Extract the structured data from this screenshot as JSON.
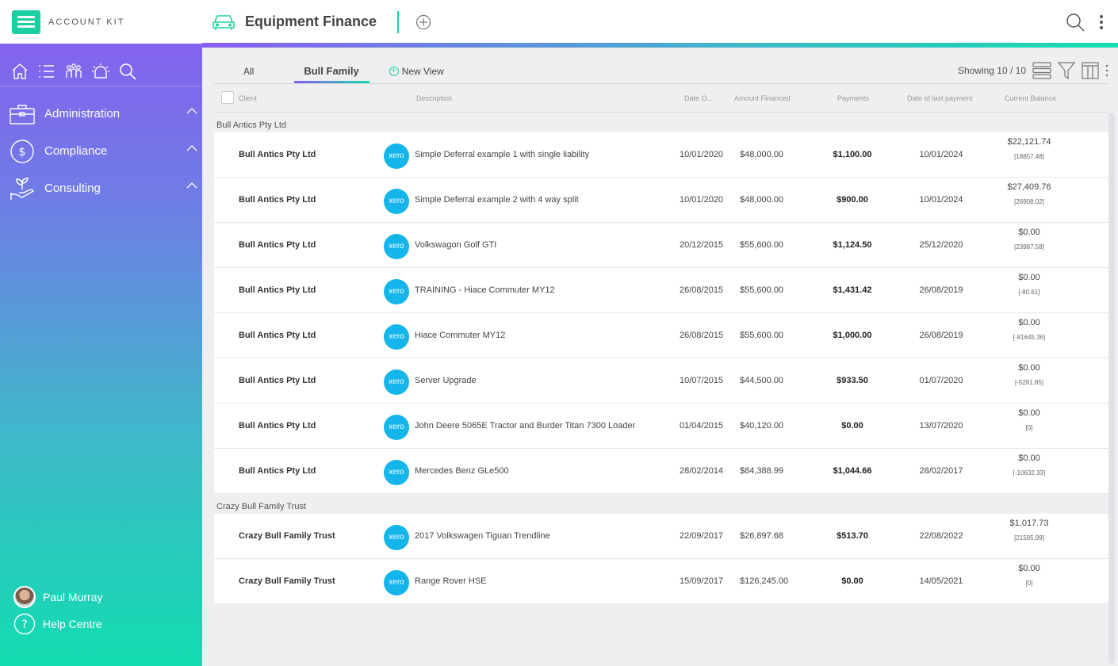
{
  "brand": {
    "name": "ACCOUNT KIT"
  },
  "header": {
    "title": "Equipment Finance"
  },
  "sidebar": {
    "icons": [
      "home-icon",
      "list-icon",
      "people-icon",
      "alarm-icon",
      "search-icon"
    ],
    "items": [
      {
        "label": "Administration",
        "icon": "briefcase-icon"
      },
      {
        "label": "Compliance",
        "icon": "dollar-circle-icon"
      },
      {
        "label": "Consulting",
        "icon": "hand-plant-icon"
      }
    ],
    "user": "Paul Murray",
    "help": "Help Centre"
  },
  "tabs": {
    "all": "All",
    "active": "Bull Family",
    "new_view": "New View"
  },
  "showing": "Showing 10 / 10",
  "columns": {
    "client": "Client",
    "description": "Description",
    "date": "Date O...",
    "amount": "Amount Financed",
    "payments": "Payments",
    "last_payment": "Date of last payment",
    "balance": "Current Balance"
  },
  "groups": [
    {
      "name": "Bull Antics Pty Ltd",
      "rows": [
        {
          "client": "Bull Antics Pty Ltd",
          "desc": "Simple Deferral example 1 with single liability",
          "date": "10/01/2020",
          "amount": "$48,000.00",
          "payment": "$1,100.00",
          "last": "10/01/2024",
          "balance": "$22,121.74",
          "sub": "[18857.48]"
        },
        {
          "client": "Bull Antics Pty Ltd",
          "desc": "Simple Deferral example 2 with 4 way split",
          "date": "10/01/2020",
          "amount": "$48,000.00",
          "payment": "$900.00",
          "last": "10/01/2024",
          "balance": "$27,409.76",
          "sub": "[26908.02]"
        },
        {
          "client": "Bull Antics Pty Ltd",
          "desc": "Volkswagon Golf GTI",
          "date": "20/12/2015",
          "amount": "$55,600.00",
          "payment": "$1,124.50",
          "last": "25/12/2020",
          "balance": "$0.00",
          "sub": "[23987.58]"
        },
        {
          "client": "Bull Antics Pty Ltd",
          "desc": "TRAINING - Hiace Commuter MY12",
          "date": "26/08/2015",
          "amount": "$55,600.00",
          "payment": "$1,431.42",
          "last": "26/08/2019",
          "balance": "$0.00",
          "sub": "[-80.61]"
        },
        {
          "client": "Bull Antics Pty Ltd",
          "desc": "Hiace Commuter MY12",
          "date": "26/08/2015",
          "amount": "$55,600.00",
          "payment": "$1,000.00",
          "last": "26/08/2019",
          "balance": "$0.00",
          "sub": "[-81645.36]"
        },
        {
          "client": "Bull Antics Pty Ltd",
          "desc": "Server Upgrade",
          "date": "10/07/2015",
          "amount": "$44,500.00",
          "payment": "$933.50",
          "last": "01/07/2020",
          "balance": "$0.00",
          "sub": "[-5281.85]"
        },
        {
          "client": "Bull Antics Pty Ltd",
          "desc": "John Deere 5065E Tractor and Burder Titan 7300 Loader",
          "date": "01/04/2015",
          "amount": "$40,120.00",
          "payment": "$0.00",
          "last": "13/07/2020",
          "balance": "$0.00",
          "sub": "[0]"
        },
        {
          "client": "Bull Antics Pty Ltd",
          "desc": "Mercedes Benz GLe500",
          "date": "28/02/2014",
          "amount": "$84,388.99",
          "payment": "$1,044.66",
          "last": "28/02/2017",
          "balance": "$0.00",
          "sub": "[-10632.33]"
        }
      ]
    },
    {
      "name": "Crazy Bull Family Trust",
      "rows": [
        {
          "client": "Crazy Bull Family Trust",
          "desc": "2017 Volkswagen Tiguan Trendline",
          "date": "22/09/2017",
          "amount": "$26,897.68",
          "payment": "$513.70",
          "last": "22/08/2022",
          "balance": "$1,017.73",
          "sub": "[21595.99]"
        },
        {
          "client": "Crazy Bull Family Trust",
          "desc": "Range Rover HSE",
          "date": "15/09/2017",
          "amount": "$126,245.00",
          "payment": "$0.00",
          "last": "14/05/2021",
          "balance": "$0.00",
          "sub": "[0]"
        }
      ]
    }
  ],
  "xero_label": "xero"
}
